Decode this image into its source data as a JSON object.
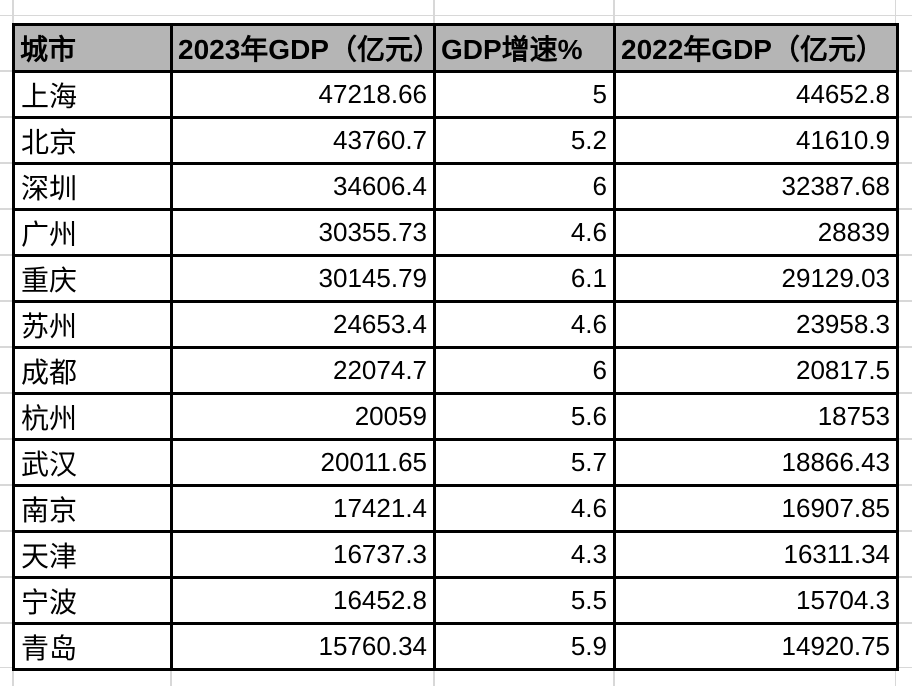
{
  "colors": {
    "background": "#ffffff",
    "header_bg": "#b5b5b5",
    "table_border": "#000000",
    "gridline": "#d8d8d8",
    "text": "#000000"
  },
  "table": {
    "columns": [
      {
        "id": "city",
        "label": "城市"
      },
      {
        "id": "gdp_2023",
        "label": "2023年GDP（亿元）"
      },
      {
        "id": "growth",
        "label": "GDP增速%"
      },
      {
        "id": "gdp_2022",
        "label": "2022年GDP（亿元）"
      }
    ],
    "rows": [
      {
        "city": "上海",
        "gdp_2023": "47218.66",
        "growth": "5",
        "gdp_2022": "44652.8"
      },
      {
        "city": "北京",
        "gdp_2023": "43760.7",
        "growth": "5.2",
        "gdp_2022": "41610.9"
      },
      {
        "city": "深圳",
        "gdp_2023": "34606.4",
        "growth": "6",
        "gdp_2022": "32387.68"
      },
      {
        "city": "广州",
        "gdp_2023": "30355.73",
        "growth": "4.6",
        "gdp_2022": "28839"
      },
      {
        "city": "重庆",
        "gdp_2023": "30145.79",
        "growth": "6.1",
        "gdp_2022": "29129.03"
      },
      {
        "city": "苏州",
        "gdp_2023": "24653.4",
        "growth": "4.6",
        "gdp_2022": "23958.3"
      },
      {
        "city": "成都",
        "gdp_2023": "22074.7",
        "growth": "6",
        "gdp_2022": "20817.5"
      },
      {
        "city": "杭州",
        "gdp_2023": "20059",
        "growth": "5.6",
        "gdp_2022": "18753"
      },
      {
        "city": "武汉",
        "gdp_2023": "20011.65",
        "growth": "5.7",
        "gdp_2022": "18866.43"
      },
      {
        "city": "南京",
        "gdp_2023": "17421.4",
        "growth": "4.6",
        "gdp_2022": "16907.85"
      },
      {
        "city": "天津",
        "gdp_2023": "16737.3",
        "growth": "4.3",
        "gdp_2022": "16311.34"
      },
      {
        "city": "宁波",
        "gdp_2023": "16452.8",
        "growth": "5.5",
        "gdp_2022": "15704.3"
      },
      {
        "city": "青岛",
        "gdp_2023": "15760.34",
        "growth": "5.9",
        "gdp_2022": "14920.75"
      }
    ]
  }
}
